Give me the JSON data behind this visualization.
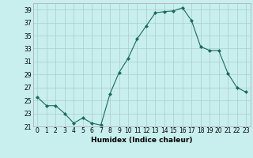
{
  "x": [
    0,
    1,
    2,
    3,
    4,
    5,
    6,
    7,
    8,
    9,
    10,
    11,
    12,
    13,
    14,
    15,
    16,
    17,
    18,
    19,
    20,
    21,
    22,
    23
  ],
  "y": [
    25.5,
    24.2,
    24.2,
    23.0,
    21.5,
    22.3,
    21.5,
    21.2,
    26.0,
    29.3,
    31.5,
    34.5,
    36.5,
    38.5,
    38.7,
    38.8,
    39.3,
    37.3,
    33.3,
    32.7,
    32.7,
    29.2,
    27.0,
    26.3
  ],
  "line_color": "#1a6b5a",
  "marker": "D",
  "marker_size": 2.0,
  "bg_color": "#c8eeee",
  "grid_color": "#aacccc",
  "xlabel": "Humidex (Indice chaleur)",
  "ylim": [
    21,
    40
  ],
  "yticks": [
    21,
    23,
    25,
    27,
    29,
    31,
    33,
    35,
    37,
    39
  ],
  "xticks": [
    0,
    1,
    2,
    3,
    4,
    5,
    6,
    7,
    8,
    9,
    10,
    11,
    12,
    13,
    14,
    15,
    16,
    17,
    18,
    19,
    20,
    21,
    22,
    23
  ],
  "xtick_labels": [
    "0",
    "1",
    "2",
    "3",
    "4",
    "5",
    "6",
    "7",
    "8",
    "9",
    "10",
    "11",
    "12",
    "13",
    "14",
    "15",
    "16",
    "17",
    "18",
    "19",
    "20",
    "21",
    "22",
    "23"
  ],
  "axis_fontsize": 6.5,
  "tick_fontsize": 5.5
}
